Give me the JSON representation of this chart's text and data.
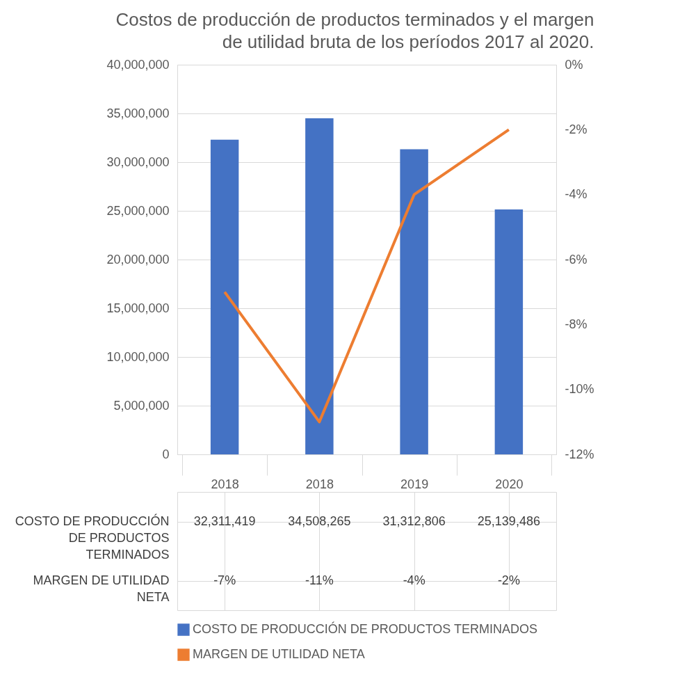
{
  "chart_data": {
    "type": "bar",
    "title": "Costos de producción de productos terminados y el margen de utilidad bruta de los períodos 2017 al 2020.",
    "categories": [
      "2018",
      "2018",
      "2019",
      "2020"
    ],
    "series": [
      {
        "name": "COSTO DE PRODUCCIÓN DE PRODUCTOS TERMINADOS",
        "color": "#4472c4",
        "values": [
          32311419,
          34508265,
          31312806,
          25139486
        ],
        "value_labels": [
          "32,311,419",
          "34,508,265",
          "31,312,806",
          "25,139,486"
        ]
      },
      {
        "name": "MARGEN DE UTILIDAD NETA",
        "type": "line",
        "axis": "y2",
        "color": "#ed7d31",
        "values": [
          -7,
          -11,
          -4,
          -2
        ],
        "value_labels": [
          "-7%",
          "-11%",
          "-4%",
          "-2%"
        ]
      }
    ],
    "ylim": [
      0,
      40000000
    ],
    "yticks": [
      {
        "value": 0,
        "label": "0"
      },
      {
        "value": 5000000,
        "label": "5,000,000"
      },
      {
        "value": 10000000,
        "label": "10,000,000"
      },
      {
        "value": 15000000,
        "label": "15,000,000"
      },
      {
        "value": 20000000,
        "label": "20,000,000"
      },
      {
        "value": 25000000,
        "label": "25,000,000"
      },
      {
        "value": 30000000,
        "label": "30,000,000"
      },
      {
        "value": 35000000,
        "label": "35,000,000"
      },
      {
        "value": 40000000,
        "label": "40,000,000"
      }
    ],
    "y2lim": [
      -12,
      0
    ],
    "y2ticks": [
      {
        "value": -12,
        "label": "-12%"
      },
      {
        "value": -10,
        "label": "-10%"
      },
      {
        "value": -8,
        "label": "-8%"
      },
      {
        "value": -6,
        "label": "-6%"
      },
      {
        "value": -4,
        "label": "-4%"
      },
      {
        "value": -2,
        "label": "-2%"
      },
      {
        "value": 0,
        "label": "0%"
      }
    ],
    "grid": "y",
    "legend": "bottom",
    "marker": "none"
  }
}
